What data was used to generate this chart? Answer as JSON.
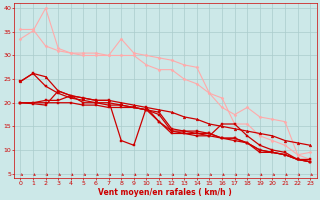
{
  "background_color": "#cce8e8",
  "grid_color": "#aacccc",
  "xlabel": "Vent moyen/en rafales ( km/h )",
  "xlabel_color": "#cc0000",
  "tick_color": "#cc0000",
  "xlim": [
    -0.5,
    23.5
  ],
  "ylim": [
    4,
    41
  ],
  "yticks": [
    5,
    10,
    15,
    20,
    25,
    30,
    35,
    40
  ],
  "xticks": [
    0,
    1,
    2,
    3,
    4,
    5,
    6,
    7,
    8,
    9,
    10,
    11,
    12,
    13,
    14,
    15,
    16,
    17,
    18,
    19,
    20,
    21,
    22,
    23
  ],
  "lines": [
    {
      "x": [
        0,
        1,
        2,
        3,
        4,
        5,
        6,
        7,
        8,
        9,
        10,
        11,
        12,
        13,
        14,
        15,
        16,
        17,
        18,
        19,
        20,
        21,
        22,
        23
      ],
      "y": [
        35.5,
        35.5,
        32,
        31,
        30.5,
        30.5,
        30.5,
        30,
        33.5,
        30.5,
        30,
        29.5,
        29,
        28,
        27.5,
        22,
        19,
        17.5,
        19,
        17,
        16.5,
        16,
        9,
        9.5
      ],
      "color": "#ffaaaa",
      "lw": 0.8,
      "marker": "D",
      "ms": 1.5
    },
    {
      "x": [
        0,
        1,
        2,
        3,
        4,
        5,
        6,
        7,
        8,
        9,
        10,
        11,
        12,
        13,
        14,
        15,
        16,
        17,
        18,
        19,
        20,
        21,
        22,
        23
      ],
      "y": [
        33.5,
        35.2,
        40,
        31.5,
        30.5,
        30,
        30,
        30,
        30,
        30,
        28,
        27,
        27,
        25,
        24,
        22,
        21,
        15.5,
        15.5,
        13,
        12,
        11,
        9,
        8
      ],
      "color": "#ffaaaa",
      "lw": 0.8,
      "marker": "D",
      "ms": 1.5
    },
    {
      "x": [
        0,
        1,
        2,
        3,
        4,
        5,
        6,
        7,
        8,
        9,
        10,
        11,
        12,
        13,
        14,
        15,
        16,
        17,
        18,
        19,
        20,
        21,
        22,
        23
      ],
      "y": [
        24.5,
        26.2,
        25.5,
        22.5,
        21.5,
        21,
        20.5,
        20.5,
        20,
        19.5,
        19,
        18.5,
        18,
        17,
        16.5,
        15.5,
        15,
        14.5,
        14,
        13.5,
        13,
        12,
        11.5,
        11
      ],
      "color": "#cc0000",
      "lw": 0.9,
      "marker": "^",
      "ms": 2.0
    },
    {
      "x": [
        0,
        1,
        2,
        3,
        4,
        5,
        6,
        7,
        8,
        9,
        10,
        11,
        12,
        13,
        14,
        15,
        16,
        17,
        18,
        19,
        20,
        21,
        22,
        23
      ],
      "y": [
        20,
        19.8,
        19.5,
        22.5,
        21.5,
        21,
        20.5,
        20.5,
        12,
        11,
        19,
        16,
        13.5,
        13.5,
        13.5,
        13,
        12.5,
        12.5,
        11.5,
        10,
        9.5,
        9,
        8,
        7.5
      ],
      "color": "#cc0000",
      "lw": 0.9,
      "marker": "s",
      "ms": 1.5
    },
    {
      "x": [
        0,
        1,
        2,
        3,
        4,
        5,
        6,
        7,
        8,
        9,
        10,
        11,
        12,
        13,
        14,
        15,
        16,
        17,
        18,
        19,
        20,
        21,
        22,
        23
      ],
      "y": [
        20,
        20,
        20.5,
        20.5,
        21.5,
        20,
        20,
        19.5,
        19.5,
        19,
        18.5,
        18,
        14.5,
        14,
        14,
        13.5,
        12.5,
        12.5,
        11.5,
        10,
        9.5,
        9,
        8,
        7.5
      ],
      "color": "#cc0000",
      "lw": 0.9,
      "marker": "s",
      "ms": 1.5
    },
    {
      "x": [
        0,
        1,
        2,
        3,
        4,
        5,
        6,
        7,
        8,
        9,
        10,
        11,
        12,
        13,
        14,
        15,
        16,
        17,
        18,
        19,
        20,
        21,
        22,
        23
      ],
      "y": [
        20,
        20,
        20,
        20,
        20,
        19.5,
        19.5,
        19,
        19,
        19,
        18.5,
        17.5,
        14,
        14,
        13.5,
        13.5,
        12.5,
        12,
        11.5,
        9.5,
        9.5,
        9,
        8,
        7.5
      ],
      "color": "#cc0000",
      "lw": 0.9,
      "marker": "s",
      "ms": 1.5
    },
    {
      "x": [
        0,
        1,
        2,
        3,
        4,
        5,
        6,
        7,
        8,
        9,
        10,
        11,
        12,
        13,
        14,
        15,
        16,
        17,
        18,
        19,
        20,
        21,
        22,
        23
      ],
      "y": [
        24.5,
        26.2,
        23.5,
        22,
        21,
        20.5,
        20,
        20,
        19.5,
        19,
        18.5,
        16,
        14,
        13.5,
        13,
        13,
        15.5,
        15.5,
        13,
        11,
        10,
        9.5,
        8,
        8
      ],
      "color": "#cc0000",
      "lw": 0.9,
      "marker": "s",
      "ms": 1.5
    }
  ]
}
